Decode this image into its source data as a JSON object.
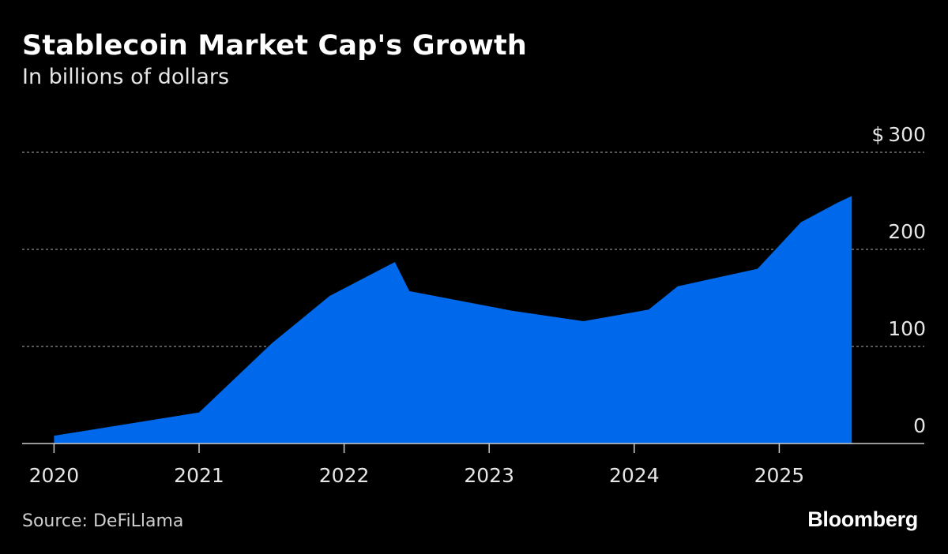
{
  "header": {
    "title": "Stablecoin Market Cap's Growth",
    "subtitle": "In billions of dollars"
  },
  "footer": {
    "source": "Source: DeFiLlama",
    "brand": "Bloomberg"
  },
  "colors": {
    "background": "#000000",
    "area": "#0068ea",
    "grid": "#8c8c8c",
    "axis": "#cccccc",
    "text": "#ffffff"
  },
  "chart_data": {
    "type": "area",
    "title": "Stablecoin Market Cap's Growth",
    "subtitle": "In billions of dollars",
    "xlabel": "",
    "ylabel": "",
    "y_unit_prefix": "$",
    "y_axis_side": "right",
    "grid": true,
    "grid_style": "dotted horizontal",
    "xlim": [
      2019.78,
      2026.0
    ],
    "ylim": [
      0,
      300
    ],
    "x_ticks": [
      2020,
      2021,
      2022,
      2023,
      2024,
      2025
    ],
    "x_tick_labels": [
      "2020",
      "2021",
      "2022",
      "2023",
      "2024",
      "2025"
    ],
    "y_ticks": [
      0,
      100,
      200,
      300
    ],
    "y_tick_labels": [
      "0",
      "100",
      "200",
      "300"
    ],
    "series": [
      {
        "x": [
          2020.0,
          2021.0,
          2021.5,
          2021.9,
          2022.35,
          2022.45,
          2023.15,
          2023.65,
          2024.1,
          2024.3,
          2024.85,
          2025.15,
          2025.4,
          2025.5
        ],
        "y": [
          8,
          32,
          103,
          152,
          187,
          157,
          137,
          126,
          138,
          162,
          180,
          228,
          248,
          255
        ]
      }
    ]
  }
}
